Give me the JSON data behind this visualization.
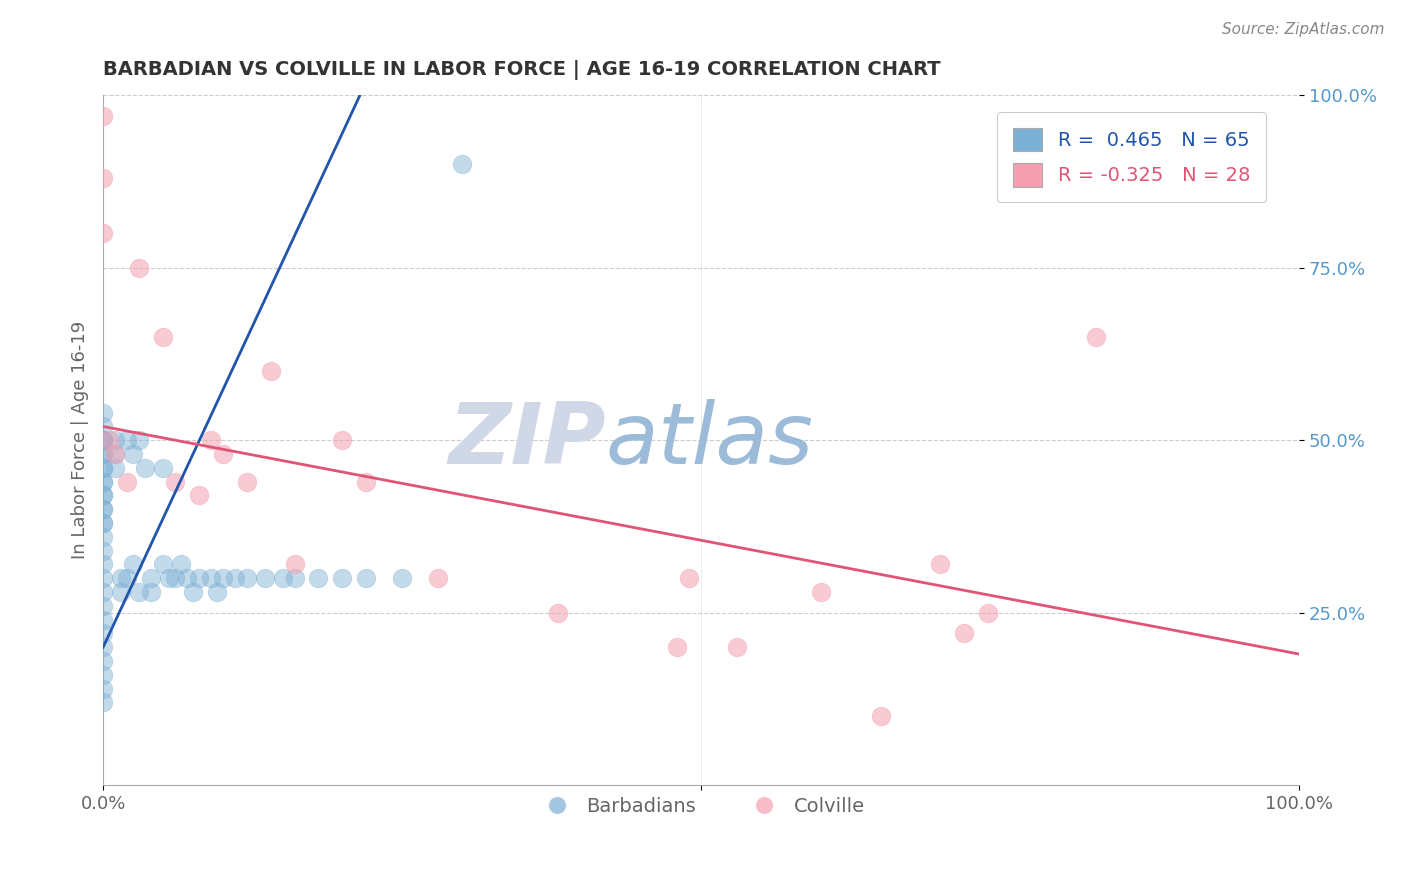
{
  "title": "BARBADIAN VS COLVILLE IN LABOR FORCE | AGE 16-19 CORRELATION CHART",
  "source": "Source: ZipAtlas.com",
  "ylabel": "In Labor Force | Age 16-19",
  "legend_label1": "Barbadians",
  "legend_label2": "Colville",
  "R1": 0.465,
  "N1": 65,
  "R2": -0.325,
  "N2": 28,
  "blue_color": "#7BAFD4",
  "pink_color": "#F4A0B0",
  "blue_line_color": "#2255AA",
  "pink_line_color": "#E05575",
  "blue_points_x": [
    0.0,
    0.0,
    0.0,
    0.0,
    0.0,
    0.0,
    0.0,
    0.0,
    0.0,
    0.0,
    0.0,
    0.0,
    0.0,
    0.0,
    0.0,
    0.0,
    0.0,
    0.0,
    0.0,
    0.0,
    0.0,
    0.0,
    0.0,
    0.0,
    0.0,
    0.0,
    0.0,
    0.0,
    0.0,
    0.0,
    0.01,
    0.01,
    0.01,
    0.015,
    0.015,
    0.02,
    0.02,
    0.025,
    0.025,
    0.03,
    0.03,
    0.035,
    0.04,
    0.04,
    0.05,
    0.05,
    0.055,
    0.06,
    0.065,
    0.07,
    0.075,
    0.08,
    0.09,
    0.095,
    0.1,
    0.11,
    0.12,
    0.135,
    0.15,
    0.16,
    0.18,
    0.2,
    0.22,
    0.25,
    0.3
  ],
  "blue_points_y": [
    0.5,
    0.48,
    0.46,
    0.44,
    0.42,
    0.4,
    0.38,
    0.36,
    0.34,
    0.32,
    0.3,
    0.28,
    0.26,
    0.24,
    0.22,
    0.2,
    0.18,
    0.16,
    0.14,
    0.12,
    0.5,
    0.52,
    0.54,
    0.5,
    0.48,
    0.46,
    0.44,
    0.42,
    0.4,
    0.38,
    0.5,
    0.48,
    0.46,
    0.3,
    0.28,
    0.5,
    0.3,
    0.48,
    0.32,
    0.5,
    0.28,
    0.46,
    0.3,
    0.28,
    0.46,
    0.32,
    0.3,
    0.3,
    0.32,
    0.3,
    0.28,
    0.3,
    0.3,
    0.28,
    0.3,
    0.3,
    0.3,
    0.3,
    0.3,
    0.3,
    0.3,
    0.3,
    0.3,
    0.3,
    0.9
  ],
  "pink_points_x": [
    0.0,
    0.0,
    0.0,
    0.005,
    0.01,
    0.02,
    0.03,
    0.05,
    0.06,
    0.08,
    0.09,
    0.1,
    0.12,
    0.14,
    0.16,
    0.2,
    0.22,
    0.28,
    0.38,
    0.48,
    0.49,
    0.53,
    0.6,
    0.65,
    0.7,
    0.72,
    0.74,
    0.83
  ],
  "pink_points_y": [
    0.97,
    0.88,
    0.8,
    0.5,
    0.48,
    0.44,
    0.75,
    0.65,
    0.44,
    0.42,
    0.5,
    0.48,
    0.44,
    0.6,
    0.32,
    0.5,
    0.44,
    0.3,
    0.25,
    0.2,
    0.3,
    0.2,
    0.28,
    0.1,
    0.32,
    0.22,
    0.25,
    0.65
  ],
  "blue_line_x0": 0.0,
  "blue_line_y0": 0.2,
  "blue_line_x1": 0.22,
  "blue_line_y1": 1.02,
  "pink_line_x0": 0.0,
  "pink_line_y0": 0.52,
  "pink_line_x1": 1.0,
  "pink_line_y1": 0.19,
  "xlim": [
    0.0,
    1.0
  ],
  "ylim": [
    0.0,
    1.0
  ],
  "grid_color": "#CCCCCC",
  "background_color": "#FFFFFF",
  "title_color": "#333333",
  "axis_label_color": "#666666",
  "ytick_color": "#5599CC",
  "watermark_color_zip": "#D0D8E8",
  "watermark_color_atlas": "#9BBBD8"
}
